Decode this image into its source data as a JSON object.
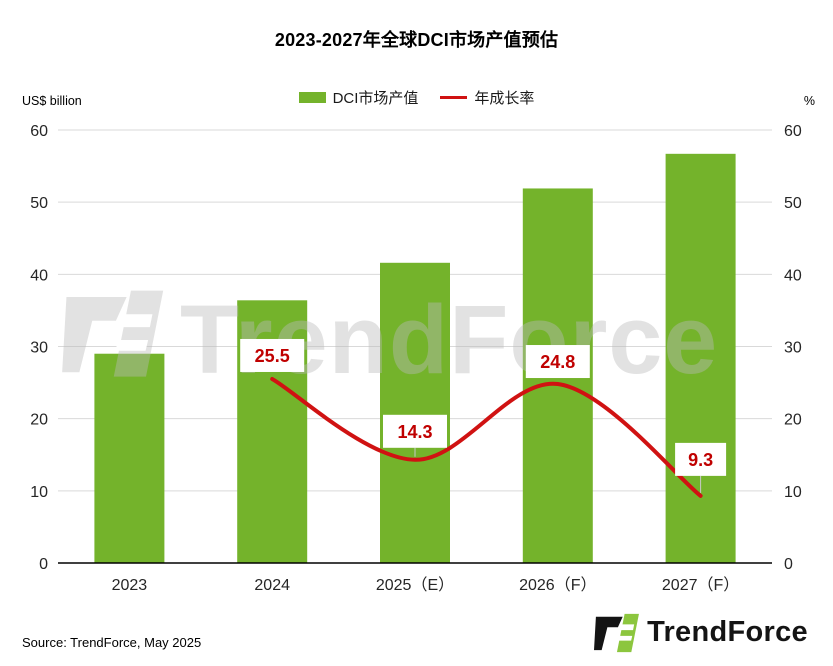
{
  "title": "2023-2027年全球DCI市场产值预估",
  "legend": [
    {
      "label": "DCI市场产值",
      "type": "bar",
      "color": "#74B32B"
    },
    {
      "label": "年成长率",
      "type": "line",
      "color": "#D01212"
    }
  ],
  "left_axis_unit": "US$ billion",
  "right_axis_unit": "%",
  "watermark": "TrendForce",
  "source": "Source: TrendForce, May 2025",
  "brand": {
    "name": "TrendForce",
    "black": "#141414",
    "green": "#8CC63E"
  },
  "colors": {
    "bar": "#74B32B",
    "line": "#D01212",
    "value_label": "#C00000",
    "grid": "#D9D9D9",
    "axis": "#000000",
    "tick_text": "#262626",
    "watermark": "rgba(185,185,185,0.42)",
    "leader": "#C9C9C9"
  },
  "chart_data": {
    "type": "bar+line combo",
    "title": "2023-2027年全球DCI市场产值预估",
    "categories": [
      "2023",
      "2024",
      "2025（E）",
      "2026（F）",
      "2027（F）"
    ],
    "series": [
      {
        "name": "DCI市场产值",
        "type": "bar",
        "axis": "left",
        "unit": "US$ billion",
        "values": [
          29,
          36.4,
          41.6,
          51.9,
          56.7
        ]
      },
      {
        "name": "年成长率",
        "type": "line",
        "axis": "right",
        "unit": "%",
        "values": [
          null,
          25.5,
          14.3,
          24.8,
          9.3
        ],
        "point_labels": [
          null,
          "25.5",
          "14.3",
          "24.8",
          "9.3"
        ],
        "label_gaps": [
          null,
          7,
          12,
          6,
          20
        ]
      }
    ],
    "left_ylabel": "US$ billion",
    "right_ylabel": "%",
    "left_ylim": [
      0,
      60
    ],
    "right_ylim": [
      0,
      60
    ],
    "yticks": [
      0,
      10,
      20,
      30,
      40,
      50,
      60
    ],
    "grid": true,
    "legend_position": "top-center"
  }
}
